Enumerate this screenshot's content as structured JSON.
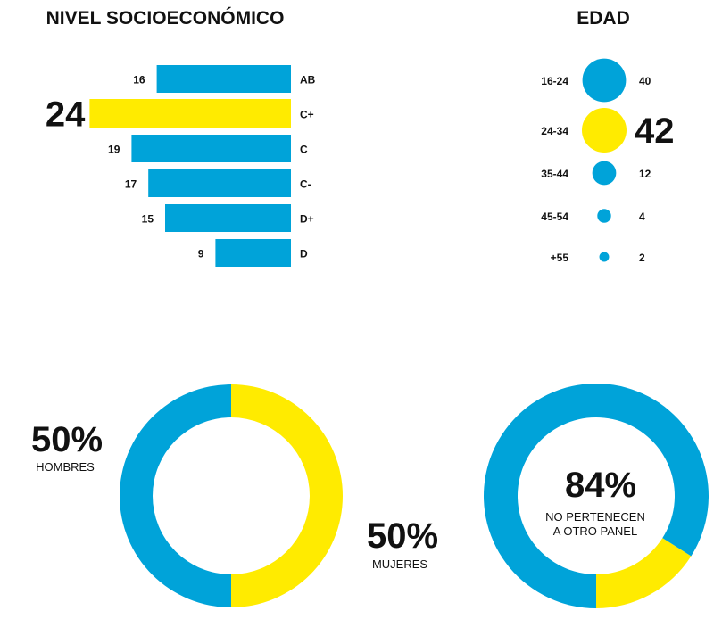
{
  "chart_data": [
    {
      "type": "bar",
      "title": "NIVEL SOCIOECONÓMICO",
      "categories": [
        "AB",
        "C+",
        "C",
        "C-",
        "D+",
        "D"
      ],
      "values": [
        16,
        24,
        19,
        17,
        15,
        9
      ],
      "highlight": "C+",
      "orientation": "horizontal-leftward",
      "colors": {
        "default": "#00A3D9",
        "highlight": "#FFEB00"
      }
    },
    {
      "type": "bubble",
      "title": "EDAD",
      "categories": [
        "16-24",
        "24-34",
        "35-44",
        "45-54",
        "+55"
      ],
      "values": [
        40,
        42,
        12,
        4,
        2
      ],
      "highlight": "24-34",
      "colors": {
        "default": "#00A3D9",
        "highlight": "#FFEB00"
      }
    },
    {
      "type": "pie",
      "style": "donut",
      "series": [
        {
          "name": "HOMBRES",
          "value": 50,
          "label": "50%",
          "color": "#00A3D9"
        },
        {
          "name": "MUJERES",
          "value": 50,
          "label": "50%",
          "color": "#FFEB00"
        }
      ]
    },
    {
      "type": "pie",
      "style": "donut",
      "center_value": "84%",
      "center_text": [
        "NO PERTENECEN",
        "A OTRO PANEL"
      ],
      "series": [
        {
          "name": "NO PERTENECEN A OTRO PANEL",
          "value": 84,
          "color": "#00A3D9"
        },
        {
          "value": 16,
          "color": "#FFEB00"
        }
      ]
    }
  ]
}
